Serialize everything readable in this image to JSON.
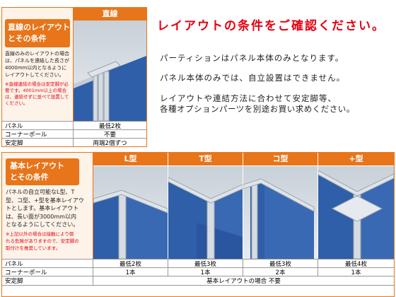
{
  "section1": {
    "header": "直線",
    "title_lines": [
      "直線のレイアウト",
      "とその条件"
    ],
    "description": [
      "直線のみのレイアウトの場合",
      "は、パネルを連結した長さが",
      "4000mm以内となるように",
      "レイアウトしてください。"
    ],
    "note": [
      "※直線連結の場合は安定脚が必",
      "要です。4001mm以上の場合",
      "は、連結せずに並べて設置して",
      "ください。"
    ],
    "rows": [
      {
        "label": "パネル",
        "value": "最低2枚"
      },
      {
        "label": "コーナーポール",
        "value": "不要"
      },
      {
        "label": "安定脚",
        "value": "両端2個ずつ"
      }
    ]
  },
  "notice": {
    "headline": "レイアウトの条件をご確認ください。",
    "lines": [
      "パーティションはパネル本体のみとなります。",
      "パネル本体のみでは、自立設置はできません。",
      "レイアウトや連結方法に合わせて安定脚等、",
      "各種オプションパーツを別途お買い求めください。"
    ]
  },
  "section2": {
    "title_lines": [
      "基本レイアウト",
      "とその条件"
    ],
    "description": [
      "パネルの自立可能なL型、T",
      "型、コ型、+型を基本レイアウ",
      "トとします。基本レイアウト",
      "は、長い面が3000mm以内",
      "となるようにしてください。"
    ],
    "note": [
      "※上記以外の場合は接触により倒",
      "れる危険がありますので、安定脚の",
      "取付けを推奨しています。"
    ],
    "columns": [
      {
        "header": "L型",
        "panel": "最低2枚",
        "pole": "1本"
      },
      {
        "header": "T型",
        "panel": "最低3枚",
        "pole": "1本"
      },
      {
        "header": "コ型",
        "panel": "最低3枚",
        "pole": "2本"
      },
      {
        "header": "+型",
        "panel": "最低4枚",
        "pole": "1本"
      }
    ],
    "row_labels": {
      "panel": "パネル",
      "pole": "コーナーポール",
      "stand": "安定脚"
    },
    "stand_value": "基本レイアウトの場合 不要"
  }
}
